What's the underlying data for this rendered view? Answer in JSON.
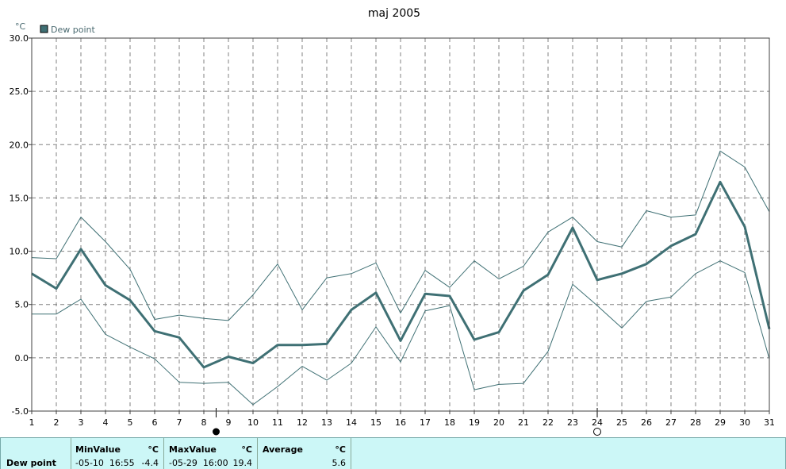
{
  "chart_data": {
    "type": "line",
    "title": "maj 2005",
    "ylabel": "°C",
    "ylim": [
      -5.0,
      30.0
    ],
    "yticks": [
      "-5.0",
      "0.0",
      "5.0",
      "10.0",
      "15.0",
      "20.0",
      "25.0",
      "30.0"
    ],
    "x": [
      1,
      2,
      3,
      4,
      5,
      6,
      7,
      8,
      9,
      10,
      11,
      12,
      13,
      14,
      15,
      16,
      17,
      18,
      19,
      20,
      21,
      22,
      23,
      24,
      25,
      26,
      27,
      28,
      29,
      30,
      31
    ],
    "grid": true,
    "legend": {
      "position": "top-left",
      "entries": [
        "Dew point"
      ]
    },
    "series": [
      {
        "name": "Dew point",
        "role": "average",
        "values": [
          7.9,
          6.5,
          10.2,
          6.8,
          5.4,
          2.5,
          1.9,
          -0.9,
          0.1,
          -0.5,
          1.2,
          1.2,
          1.3,
          4.5,
          6.1,
          1.6,
          6.0,
          5.8,
          1.7,
          2.4,
          6.3,
          7.8,
          12.2,
          7.3,
          7.9,
          8.8,
          10.5,
          11.6,
          16.5,
          12.3,
          2.7
        ]
      },
      {
        "role": "max",
        "values": [
          9.4,
          9.3,
          13.2,
          10.9,
          8.3,
          3.6,
          4.0,
          3.7,
          3.5,
          5.9,
          8.8,
          4.5,
          7.5,
          7.9,
          8.9,
          4.2,
          8.2,
          6.6,
          9.1,
          7.4,
          8.6,
          11.8,
          13.2,
          10.9,
          10.4,
          13.8,
          13.2,
          13.4,
          19.4,
          17.9,
          13.7
        ]
      },
      {
        "role": "min",
        "values": [
          4.1,
          4.1,
          5.5,
          2.2,
          1.0,
          -0.1,
          -2.3,
          -2.4,
          -2.3,
          -4.4,
          -2.7,
          -0.8,
          -2.1,
          -0.5,
          2.9,
          -0.4,
          4.4,
          4.9,
          -3.0,
          -2.5,
          -2.4,
          0.6,
          6.9,
          4.9,
          2.8,
          5.3,
          5.7,
          7.9,
          9.1,
          8.0,
          -0.1
        ]
      }
    ],
    "markers": [
      {
        "x": 8.5,
        "shape": "filled-circle"
      },
      {
        "x": 24,
        "shape": "open-circle"
      }
    ]
  },
  "colors": {
    "series": "#3f7074",
    "grid": "#808080",
    "panel_bg": "#ccf7f7"
  },
  "stats": {
    "row_label": "Dew point",
    "min": {
      "header": "MinValue",
      "unit": "°C",
      "time": "-05-10  16:55",
      "value": "-4.4"
    },
    "max": {
      "header": "MaxValue",
      "unit": "°C",
      "time": "-05-29  16:00",
      "value": "19.4"
    },
    "avg": {
      "header": "Average",
      "unit": "°C",
      "value": "5.6"
    }
  }
}
